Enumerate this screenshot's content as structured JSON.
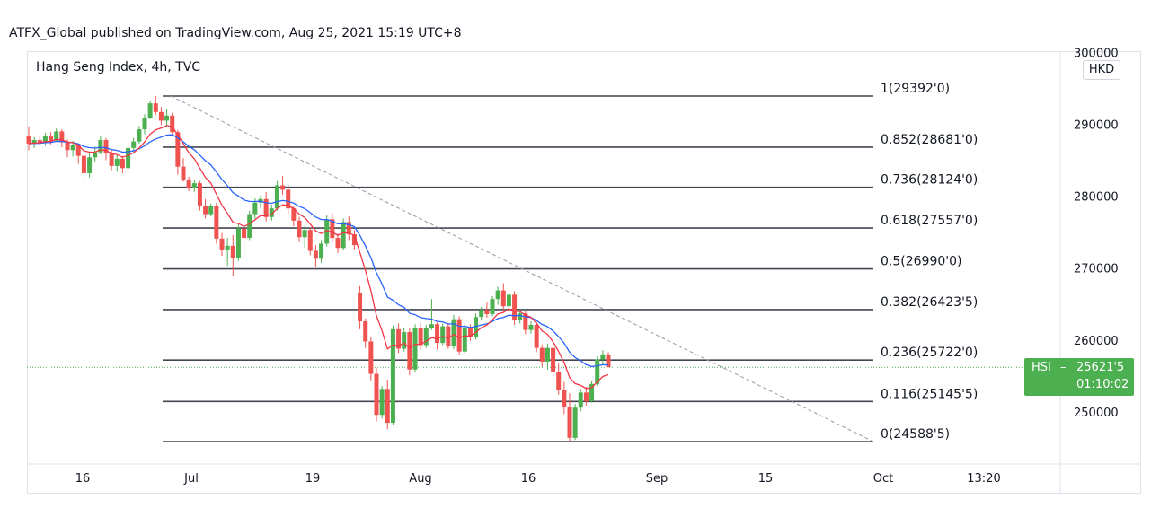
{
  "header": {
    "text": "ATFX_Global published on TradingView.com, Aug 25, 2021 15:19 UTC+8"
  },
  "symbol_title": "Hang Seng Index, 4h, TVC",
  "currency": "HKD",
  "price_tag": {
    "symbol": "HSI",
    "dash": "–",
    "price": "25621'5",
    "countdown": "01:10:02"
  },
  "colors": {
    "up": "#4caf50",
    "down": "#ef5350",
    "ma_fast": "#f23645",
    "ma_slow": "#2962ff",
    "fib": "#434651",
    "trend": "#9598a1"
  },
  "chart_data": {
    "type": "candlestick",
    "y_ticks": [
      {
        "value": 300000,
        "label": "300000"
      },
      {
        "value": 290000,
        "label": "290000"
      },
      {
        "value": 280000,
        "label": "280000"
      },
      {
        "value": 270000,
        "label": "270000"
      },
      {
        "value": 260000,
        "label": "260000"
      },
      {
        "value": 250000,
        "label": "250000"
      }
    ],
    "ylim": [
      243000,
      300500
    ],
    "x_ticks": [
      "16",
      "Jul",
      "19",
      "Aug",
      "16",
      "Sep",
      "15",
      "Oct",
      "13:20"
    ],
    "fib_levels": [
      {
        "ratio": "1",
        "price": 293920,
        "label": "1(29392'0)"
      },
      {
        "ratio": "0.852",
        "price": 286810,
        "label": "0.852(28681'0)"
      },
      {
        "ratio": "0.736",
        "price": 281240,
        "label": "0.736(28124'0)"
      },
      {
        "ratio": "0.618",
        "price": 275570,
        "label": "0.618(27557'0)"
      },
      {
        "ratio": "0.5",
        "price": 269900,
        "label": "0.5(26990'0)"
      },
      {
        "ratio": "0.382",
        "price": 264235,
        "label": "0.382(26423'5)"
      },
      {
        "ratio": "0.236",
        "price": 257220,
        "label": "0.236(25722'0)"
      },
      {
        "ratio": "0.116",
        "price": 251455,
        "label": "0.116(25145'5)"
      },
      {
        "ratio": "0",
        "price": 245885,
        "label": "0(24588'5)"
      }
    ],
    "last_price": 256215,
    "candles": [
      [
        288300,
        289700,
        286400,
        287300
      ],
      [
        287300,
        288200,
        286700,
        287800
      ],
      [
        287800,
        288500,
        287100,
        287500
      ],
      [
        287500,
        288800,
        287000,
        288300
      ],
      [
        288300,
        288900,
        287200,
        287700
      ],
      [
        287700,
        289400,
        287600,
        289000
      ],
      [
        289000,
        289300,
        286800,
        287500
      ],
      [
        287500,
        287900,
        285400,
        286400
      ],
      [
        286400,
        287700,
        285500,
        287100
      ],
      [
        287100,
        287300,
        284500,
        285600
      ],
      [
        285600,
        285900,
        282200,
        283200
      ],
      [
        283200,
        286000,
        282600,
        285400
      ],
      [
        285400,
        286900,
        284700,
        286100
      ],
      [
        286100,
        288300,
        285800,
        287800
      ],
      [
        287800,
        288100,
        285000,
        286000
      ],
      [
        286000,
        286400,
        283600,
        284200
      ],
      [
        284200,
        285700,
        283400,
        285200
      ],
      [
        285200,
        285600,
        283200,
        283900
      ],
      [
        283900,
        287200,
        283500,
        286700
      ],
      [
        286700,
        288100,
        286100,
        287600
      ],
      [
        287600,
        289800,
        287300,
        289300
      ],
      [
        289300,
        291400,
        288600,
        290900
      ],
      [
        290900,
        293300,
        290700,
        292900
      ],
      [
        292900,
        293920,
        291300,
        291700
      ],
      [
        291700,
        292400,
        289900,
        290500
      ],
      [
        290500,
        292100,
        289800,
        291200
      ],
      [
        291200,
        291600,
        288500,
        288900
      ],
      [
        288900,
        289200,
        283000,
        284100
      ],
      [
        284100,
        285300,
        282000,
        282300
      ],
      [
        282300,
        282700,
        280700,
        281100
      ],
      [
        281100,
        282300,
        280600,
        281800
      ],
      [
        281800,
        282100,
        278000,
        278700
      ],
      [
        278700,
        279600,
        276900,
        277500
      ],
      [
        277500,
        279000,
        277200,
        278600
      ],
      [
        278600,
        279100,
        273400,
        274100
      ],
      [
        274100,
        274900,
        271700,
        272600
      ],
      [
        272600,
        274200,
        270300,
        273100
      ],
      [
        273100,
        274600,
        268900,
        271400
      ],
      [
        271400,
        276100,
        271000,
        275500
      ],
      [
        275500,
        276300,
        273400,
        274200
      ],
      [
        274200,
        278000,
        273900,
        277500
      ],
      [
        277500,
        279700,
        276900,
        279100
      ],
      [
        279100,
        280100,
        278400,
        279600
      ],
      [
        279600,
        280600,
        276500,
        277100
      ],
      [
        277100,
        278800,
        276600,
        278300
      ],
      [
        278300,
        282100,
        278000,
        281500
      ],
      [
        281500,
        282800,
        280200,
        280900
      ],
      [
        280900,
        281600,
        277400,
        278300
      ],
      [
        278300,
        278700,
        275800,
        276600
      ],
      [
        276600,
        277100,
        273600,
        274300
      ],
      [
        274300,
        275900,
        272800,
        275300
      ],
      [
        275300,
        275700,
        271800,
        272400
      ],
      [
        272400,
        273200,
        270200,
        271300
      ],
      [
        271300,
        273900,
        270700,
        273400
      ],
      [
        273400,
        277400,
        273000,
        276800
      ],
      [
        276800,
        277600,
        273600,
        274200
      ],
      [
        274200,
        274800,
        272100,
        272800
      ],
      [
        272800,
        276900,
        272500,
        276400
      ],
      [
        276400,
        277200,
        273900,
        274700
      ],
      [
        274700,
        275300,
        272600,
        273200
      ],
      [
        266500,
        267500,
        261500,
        262600
      ],
      [
        262600,
        263000,
        258900,
        259800
      ],
      [
        259800,
        260500,
        254400,
        255300
      ],
      [
        255300,
        256100,
        248700,
        249600
      ],
      [
        249600,
        253600,
        249100,
        253200
      ],
      [
        253200,
        254500,
        247600,
        248500
      ],
      [
        248500,
        262000,
        248200,
        261500
      ],
      [
        261500,
        262300,
        258200,
        258800
      ],
      [
        258800,
        261700,
        258400,
        261100
      ],
      [
        261100,
        261600,
        255100,
        255900
      ],
      [
        255900,
        262200,
        255600,
        261700
      ],
      [
        261700,
        262400,
        258600,
        259300
      ],
      [
        259300,
        262100,
        258900,
        261700
      ],
      [
        261700,
        265700,
        261400,
        262200
      ],
      [
        262200,
        262500,
        258700,
        259600
      ],
      [
        259600,
        262300,
        259300,
        261900
      ],
      [
        261900,
        262400,
        258800,
        259200
      ],
      [
        259200,
        263500,
        258700,
        262900
      ],
      [
        262900,
        263300,
        258000,
        258400
      ],
      [
        258400,
        262200,
        258100,
        261700
      ],
      [
        261700,
        262200,
        259900,
        260400
      ],
      [
        260400,
        263700,
        260100,
        263200
      ],
      [
        263200,
        264600,
        262700,
        264200
      ],
      [
        264200,
        265200,
        263100,
        263600
      ],
      [
        263600,
        266100,
        263300,
        265700
      ],
      [
        265700,
        267400,
        264900,
        266900
      ],
      [
        266900,
        267900,
        264200,
        264700
      ],
      [
        264700,
        266700,
        264300,
        266300
      ],
      [
        266300,
        266800,
        262100,
        262800
      ],
      [
        262800,
        264200,
        262300,
        263700
      ],
      [
        263700,
        264100,
        260800,
        261400
      ],
      [
        261400,
        262600,
        260900,
        262100
      ],
      [
        262100,
        262500,
        258300,
        258900
      ],
      [
        258900,
        259400,
        256300,
        257000
      ],
      [
        257000,
        259500,
        255900,
        258900
      ],
      [
        258900,
        259300,
        254800,
        255600
      ],
      [
        255600,
        256700,
        252400,
        253100
      ],
      [
        253100,
        254200,
        249700,
        250700
      ],
      [
        250700,
        252600,
        245885,
        246400
      ],
      [
        246400,
        251100,
        246100,
        250600
      ],
      [
        250600,
        253200,
        250100,
        252700
      ],
      [
        252700,
        253500,
        250900,
        251500
      ],
      [
        251500,
        254300,
        251300,
        253900
      ],
      [
        253900,
        257700,
        253600,
        257300
      ],
      [
        257300,
        258600,
        256500,
        258000
      ],
      [
        258000,
        258300,
        256500,
        256215
      ]
    ]
  }
}
